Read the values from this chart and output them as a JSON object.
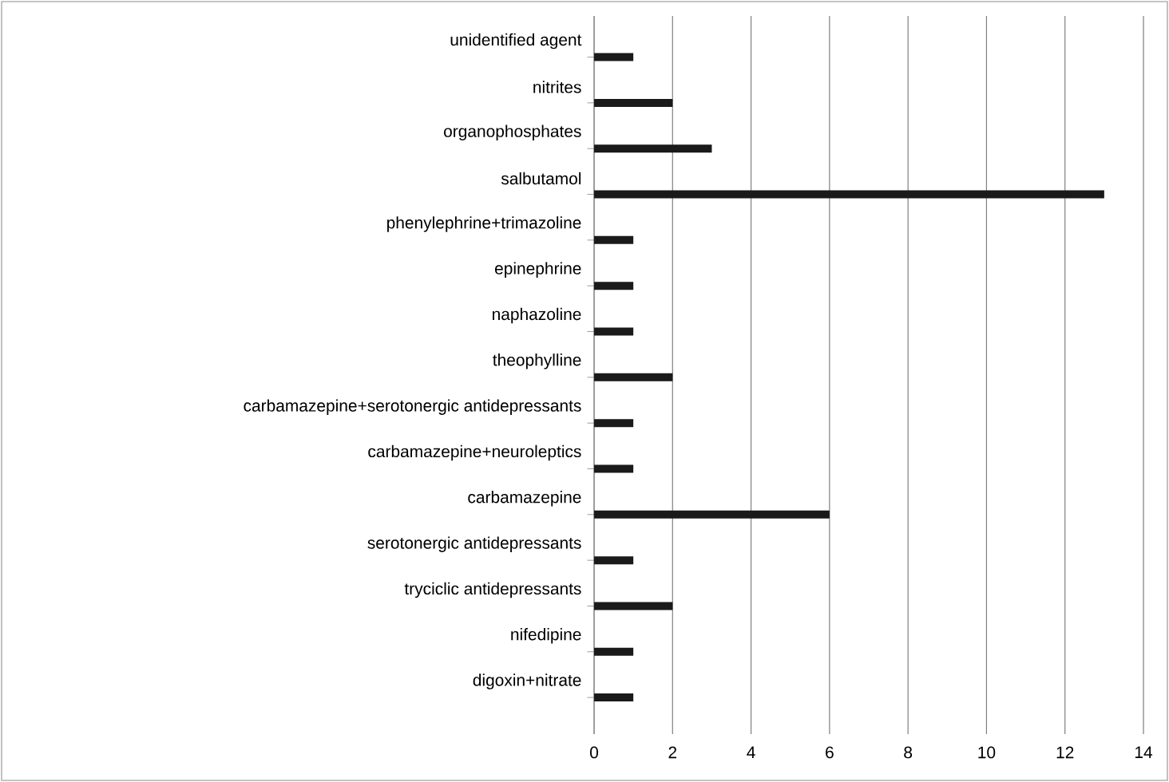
{
  "chart_data": {
    "type": "bar",
    "orientation": "horizontal",
    "categories": [
      "unidentified agent",
      "nitrites",
      "organophosphates",
      "salbutamol",
      "phenylephrine+trimazoline",
      "epinephrine",
      "naphazoline",
      "theophylline",
      "carbamazepine+serotonergic antidepressants",
      "carbamazepine+neuroleptics",
      "carbamazepine",
      "serotonergic antidepressants",
      "tryciclic antidepressants",
      "nifedipine",
      "digoxin+nitrate"
    ],
    "values": [
      1,
      2,
      3,
      13,
      1,
      1,
      1,
      2,
      1,
      1,
      6,
      1,
      2,
      1,
      1
    ],
    "color": "#1a1a1a",
    "xlim": [
      0,
      14
    ],
    "xticks": [
      0,
      2,
      4,
      6,
      8,
      10,
      12,
      14
    ],
    "grid": "x"
  }
}
